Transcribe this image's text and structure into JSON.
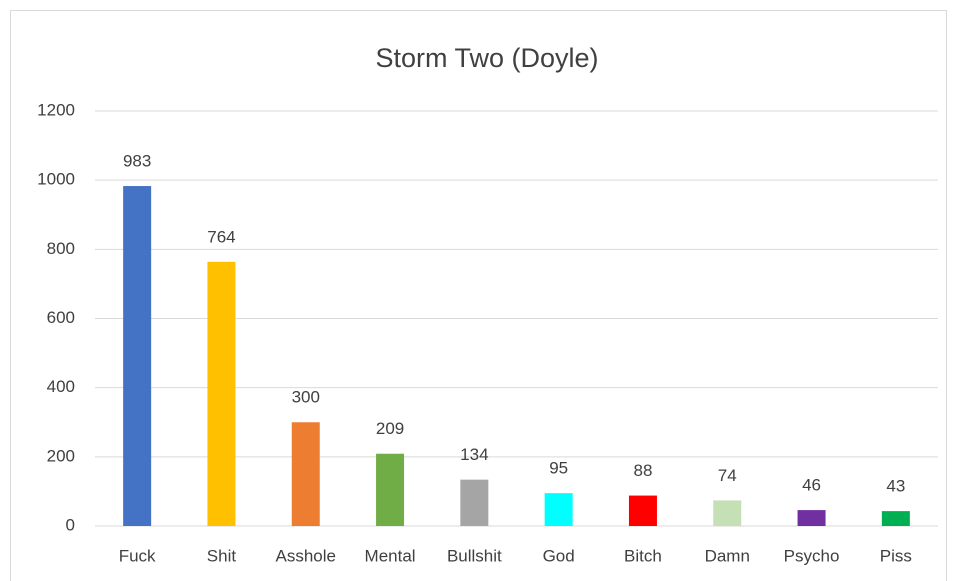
{
  "chart_data": {
    "type": "bar",
    "title": "Storm Two (Doyle)",
    "categories": [
      "Fuck",
      "Shit",
      "Asshole",
      "Mental",
      "Bullshit",
      "God",
      "Bitch",
      "Damn",
      "Psycho",
      "Piss"
    ],
    "values": [
      983,
      764,
      300,
      209,
      134,
      95,
      88,
      74,
      46,
      43
    ],
    "colors": [
      "#4472c4",
      "#ffc000",
      "#ed7d31",
      "#70ad47",
      "#a5a5a5",
      "#00ffff",
      "#ff0000",
      "#c5e0b4",
      "#7030a0",
      "#00b050"
    ],
    "ylim": [
      0,
      1200
    ],
    "yticks": [
      0,
      200,
      400,
      600,
      800,
      1000,
      1200
    ],
    "grid": true
  }
}
